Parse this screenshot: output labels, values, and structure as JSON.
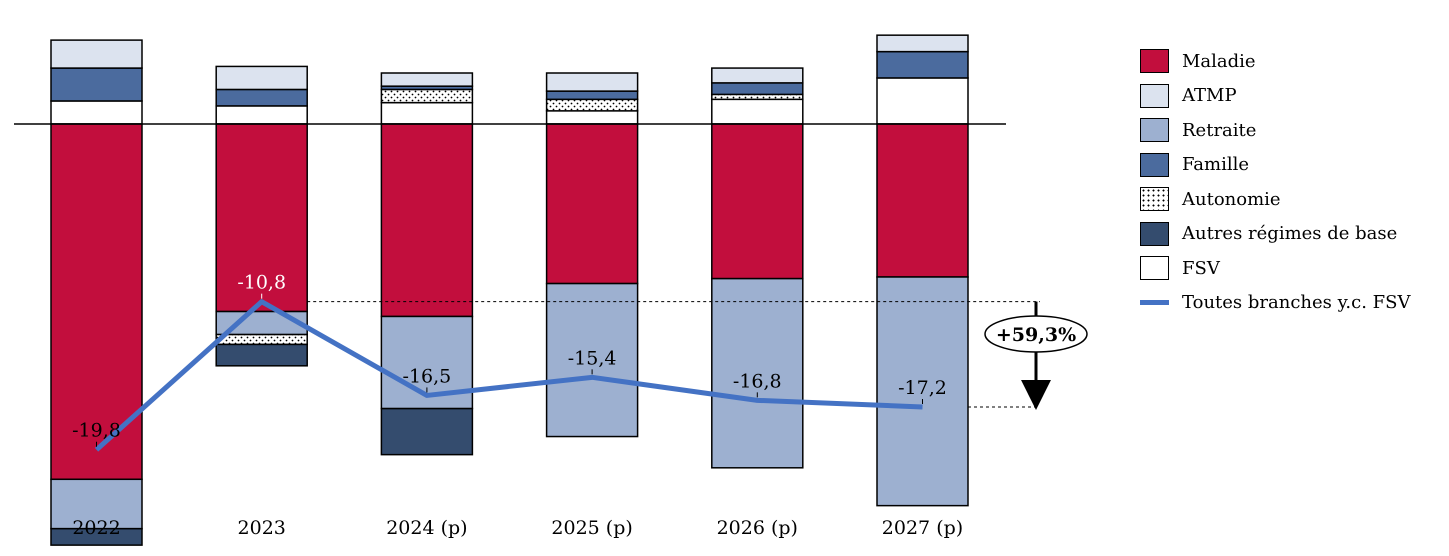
{
  "chart_data": {
    "type": "bar",
    "stacked": true,
    "categories": [
      "2022",
      "2023",
      "2024 (p)",
      "2025 (p)",
      "2026 (p)",
      "2027 (p)"
    ],
    "series": [
      {
        "name": "Maladie",
        "color": "#c20e3d",
        "values": [
          -21.6,
          -11.4,
          -11.7,
          -9.7,
          -9.4,
          -9.3
        ]
      },
      {
        "name": "ATMP",
        "color": "#dce3ef",
        "pattern": "none",
        "values": [
          1.7,
          1.4,
          0.8,
          1.1,
          0.9,
          1.0
        ]
      },
      {
        "name": "Retraite",
        "color": "#9db0d0",
        "values": [
          -3.0,
          -1.4,
          -5.6,
          -9.3,
          -11.5,
          -13.9
        ]
      },
      {
        "name": "Famille",
        "color": "#4b6b9e",
        "values": [
          2.0,
          1.0,
          0.2,
          0.5,
          0.7,
          1.6
        ]
      },
      {
        "name": "Autonomie",
        "color": "#ffffff",
        "pattern": "dots",
        "values": [
          0.0,
          -0.6,
          0.8,
          0.7,
          0.3,
          0.0
        ]
      },
      {
        "name": "Autres régimes de base",
        "color": "#344c6e",
        "values": [
          -1.0,
          -1.3,
          -2.8,
          0.0,
          0.0,
          0.0
        ]
      },
      {
        "name": "FSV",
        "color": "#ffffff",
        "values": [
          1.4,
          1.1,
          1.3,
          0.8,
          1.5,
          2.8
        ]
      }
    ],
    "total_series": {
      "name": "Toutes branches y.c. FSV",
      "type": "line",
      "color": "#4472c4",
      "values": [
        -19.8,
        -10.8,
        -16.5,
        -15.4,
        -16.8,
        -17.2
      ],
      "labels": [
        "-19,8",
        "-10,8",
        "-16,5",
        "-15,4",
        "-16,8",
        "-17,2"
      ]
    },
    "annotation": {
      "text": "+59,3%",
      "from": -10.8,
      "to": -17.2
    },
    "legend_position": "right",
    "ylim": [
      -26.0,
      5.5
    ],
    "grid": false
  }
}
